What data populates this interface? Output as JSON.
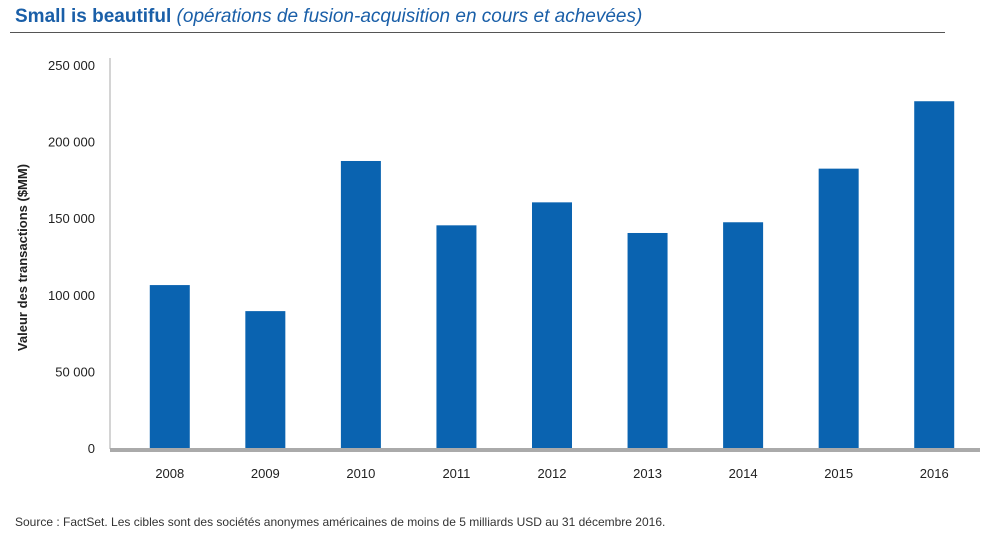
{
  "title": {
    "main": "Small is beautiful",
    "subtitle": "(opérations de fusion-acquisition en cours et achevées)"
  },
  "source": "Source : FactSet. Les cibles sont des sociétés anonymes américaines de moins de 5 milliards USD au 31 décembre 2016.",
  "colors": {
    "bar": "#0a63b0",
    "title": "#1a5fa8",
    "axis": "#aaaaaa"
  },
  "chart_data": {
    "type": "bar",
    "title": "Small is beautiful",
    "subtitle": "(opérations de fusion-acquisition en cours et achevées)",
    "xlabel": "",
    "ylabel": "Valeur des transactions  ($MM)",
    "categories": [
      "2008",
      "2009",
      "2010",
      "2011",
      "2012",
      "2013",
      "2014",
      "2015",
      "2016"
    ],
    "values": [
      107000,
      90000,
      188000,
      146000,
      161000,
      141000,
      148000,
      183000,
      227000
    ],
    "ylim": [
      0,
      250000
    ],
    "yticks": [
      0,
      50000,
      100000,
      150000,
      200000,
      250000
    ],
    "ytick_labels": [
      "0",
      "50 000",
      "100 000",
      "150 000",
      "200 000",
      "250 000"
    ],
    "grid": false,
    "legend": "none"
  }
}
